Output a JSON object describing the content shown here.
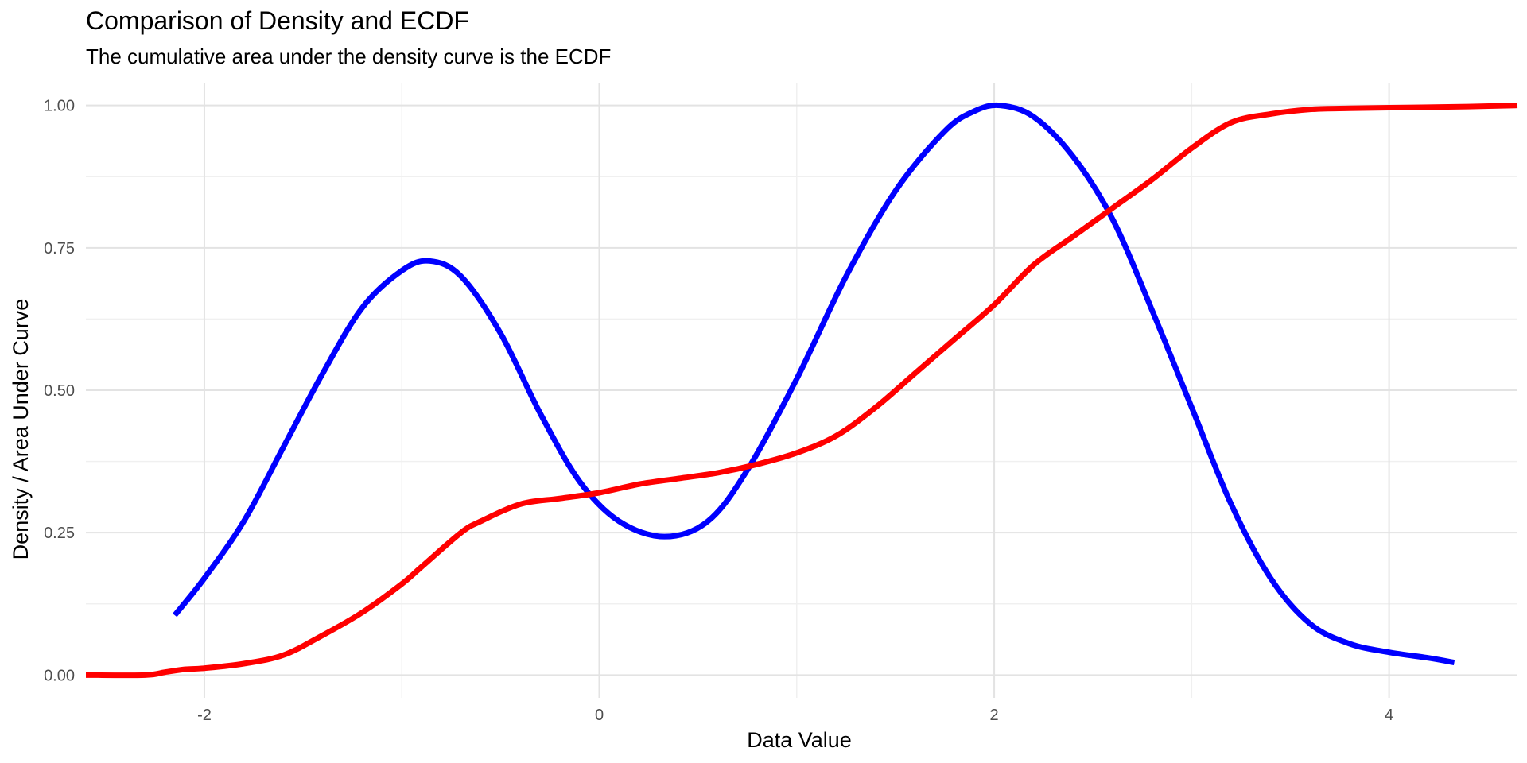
{
  "chart_data": {
    "type": "line",
    "title": "Comparison of Density and ECDF",
    "subtitle": "The cumulative area under the density curve is the ECDF",
    "xlabel": "Data Value",
    "ylabel": "Density / Area Under Curve",
    "xlim": [
      -2.6,
      4.65
    ],
    "ylim": [
      -0.04,
      1.04
    ],
    "x_ticks": [
      -2,
      0,
      2,
      4
    ],
    "x_tick_labels": [
      "-2",
      "0",
      "2",
      "4"
    ],
    "y_ticks": [
      0,
      0.25,
      0.5,
      0.75,
      1.0
    ],
    "y_tick_labels": [
      "0.00",
      "0.25",
      "0.50",
      "0.75",
      "1.00"
    ],
    "grid": true,
    "series": [
      {
        "color": "#0000ff",
        "x": [
          -2.15,
          -2.0,
          -1.8,
          -1.6,
          -1.4,
          -1.2,
          -1.0,
          -0.86,
          -0.7,
          -0.5,
          -0.3,
          -0.1,
          0.1,
          0.33,
          0.55,
          0.75,
          1.0,
          1.25,
          1.5,
          1.75,
          1.9,
          2.03,
          2.2,
          2.4,
          2.6,
          2.8,
          3.0,
          3.2,
          3.4,
          3.6,
          3.8,
          4.0,
          4.2,
          4.33
        ],
        "y": [
          0.105,
          0.17,
          0.27,
          0.4,
          0.53,
          0.645,
          0.71,
          0.727,
          0.7,
          0.6,
          0.46,
          0.34,
          0.27,
          0.243,
          0.27,
          0.36,
          0.52,
          0.7,
          0.85,
          0.955,
          0.99,
          1.0,
          0.98,
          0.91,
          0.8,
          0.64,
          0.47,
          0.3,
          0.17,
          0.09,
          0.055,
          0.04,
          0.03,
          0.022
        ]
      },
      {
        "color": "#ff0000",
        "x": [
          -2.6,
          -2.3,
          -2.2,
          -2.1,
          -2.0,
          -1.8,
          -1.6,
          -1.4,
          -1.2,
          -1.0,
          -0.9,
          -0.7,
          -0.6,
          -0.4,
          -0.2,
          0.0,
          0.2,
          0.4,
          0.6,
          0.8,
          1.0,
          1.2,
          1.4,
          1.6,
          1.8,
          2.0,
          2.2,
          2.4,
          2.6,
          2.8,
          3.0,
          3.2,
          3.4,
          3.6,
          3.8,
          4.0,
          4.2,
          4.4,
          4.65
        ],
        "y": [
          0.0,
          0.0,
          0.005,
          0.01,
          0.012,
          0.02,
          0.035,
          0.07,
          0.11,
          0.16,
          0.19,
          0.25,
          0.27,
          0.3,
          0.31,
          0.32,
          0.335,
          0.345,
          0.355,
          0.37,
          0.39,
          0.42,
          0.47,
          0.53,
          0.59,
          0.65,
          0.72,
          0.77,
          0.82,
          0.87,
          0.925,
          0.97,
          0.985,
          0.993,
          0.995,
          0.996,
          0.997,
          0.998,
          1.0
        ]
      }
    ]
  }
}
